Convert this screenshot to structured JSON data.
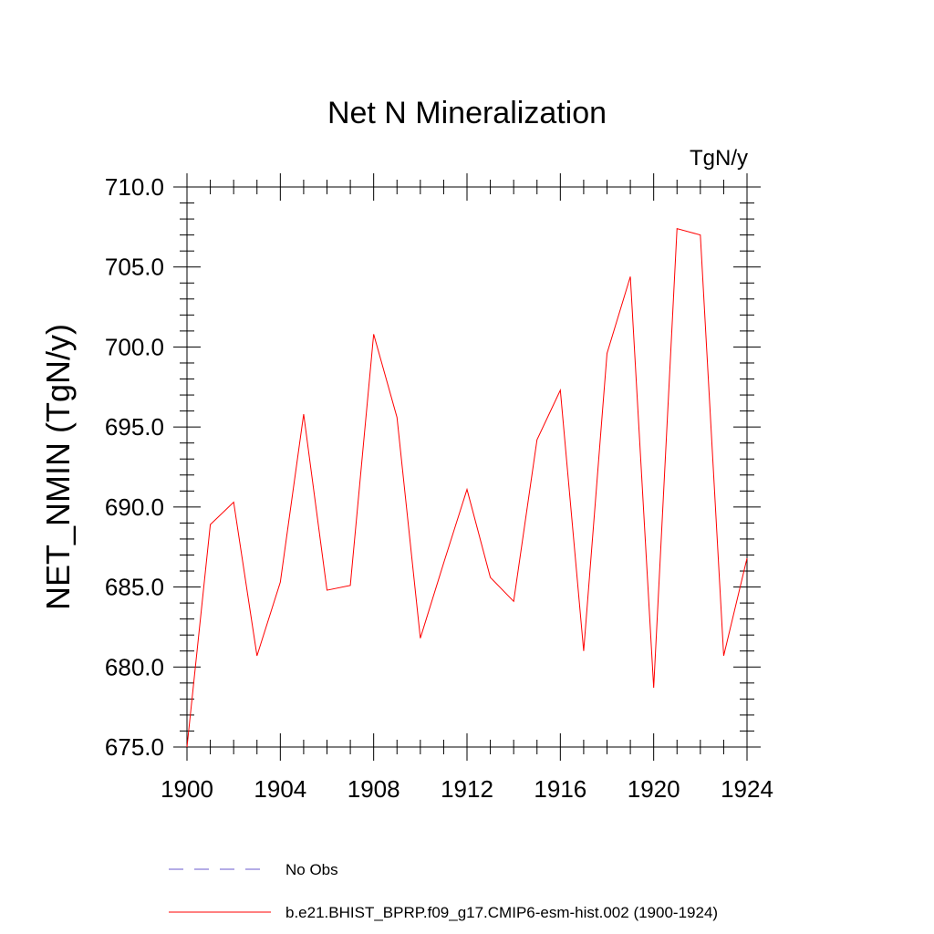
{
  "chart_data": {
    "type": "line",
    "title": "Net N Mineralization",
    "units_label": "TgN/y",
    "ylabel": "NET_NMIN  (TgN/y)",
    "xlabel": "",
    "xlim": [
      1900,
      1924
    ],
    "ylim": [
      675,
      710
    ],
    "x_ticks": [
      1900,
      1904,
      1908,
      1912,
      1916,
      1920,
      1924
    ],
    "y_ticks": [
      "675.0",
      "680.0",
      "685.0",
      "690.0",
      "695.0",
      "700.0",
      "705.0",
      "710.0"
    ],
    "grid": false,
    "legend_position": "bottom",
    "series": [
      {
        "name": "b.e21.BHIST_BPRP.f09_g17.CMIP6-esm-hist.002 (1900-1924)",
        "color": "#ff0000",
        "x": [
          1900,
          1901,
          1902,
          1903,
          1904,
          1905,
          1906,
          1907,
          1908,
          1909,
          1910,
          1911,
          1912,
          1913,
          1914,
          1915,
          1916,
          1917,
          1918,
          1919,
          1920,
          1921,
          1922,
          1923,
          1924
        ],
        "y": [
          675.0,
          688.9,
          690.3,
          680.7,
          685.3,
          695.8,
          684.8,
          685.1,
          700.8,
          695.6,
          681.8,
          686.5,
          691.1,
          685.6,
          684.1,
          694.2,
          697.3,
          681.0,
          699.6,
          704.4,
          678.7,
          707.4,
          707.0,
          680.7,
          686.8
        ]
      }
    ],
    "legend": [
      {
        "label": "No Obs",
        "color": "#6a5acd",
        "dash": true
      },
      {
        "label": "b.e21.BHIST_BPRP.f09_g17.CMIP6-esm-hist.002 (1900-1924)",
        "color": "#ff0000",
        "dash": false
      }
    ]
  }
}
